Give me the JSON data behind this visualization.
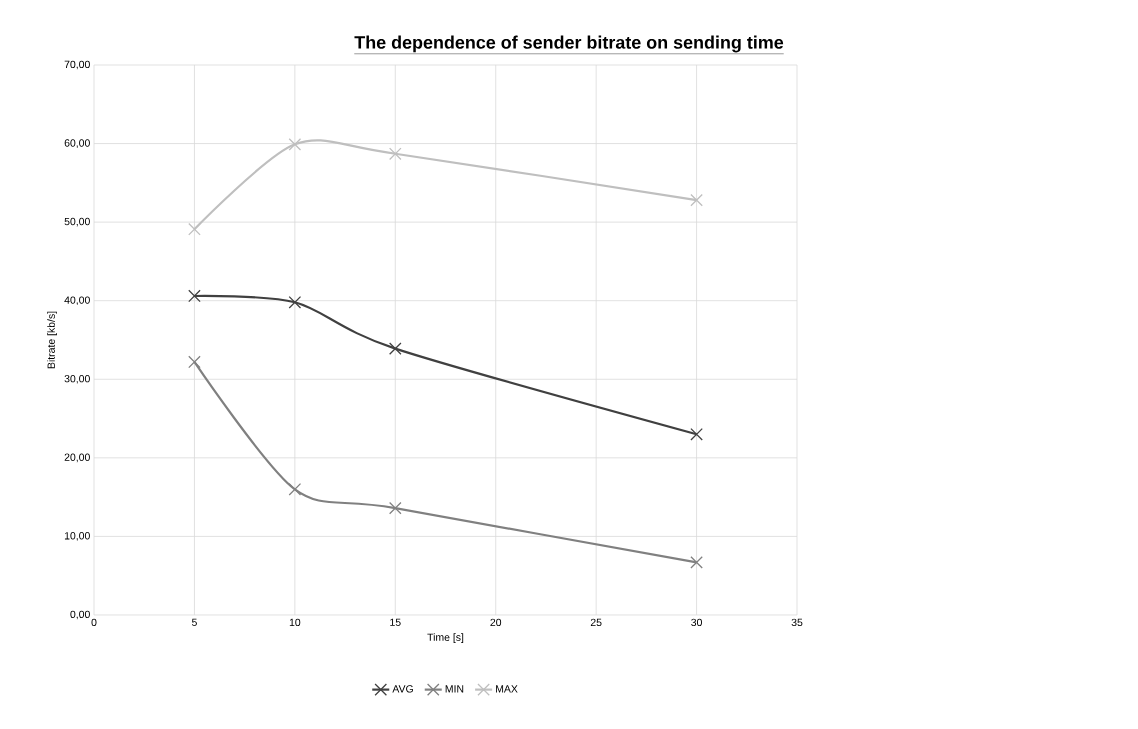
{
  "chart_data": {
    "type": "line",
    "title": "The dependence of sender bitrate on sending time",
    "xlabel": "Time [s]",
    "ylabel": "Bitrate [kb/s]",
    "x": [
      5,
      10,
      15,
      30
    ],
    "series": [
      {
        "name": "AVG",
        "color": "#404040",
        "values": [
          40.6,
          39.8,
          33.9,
          23.0
        ]
      },
      {
        "name": "MIN",
        "color": "#808080",
        "values": [
          32.2,
          16.0,
          13.6,
          6.7
        ]
      },
      {
        "name": "MAX",
        "color": "#bfbfbf",
        "values": [
          49.1,
          59.9,
          58.7,
          52.8
        ]
      }
    ],
    "xlim": [
      0,
      35
    ],
    "xticks": [
      0,
      5,
      10,
      15,
      20,
      25,
      30,
      35
    ],
    "ylim": [
      0,
      70
    ],
    "yticks": [
      {
        "value": 0,
        "label": "0,00"
      },
      {
        "value": 10,
        "label": "10,00"
      },
      {
        "value": 20,
        "label": "20,00"
      },
      {
        "value": 30,
        "label": "30,00"
      },
      {
        "value": 40,
        "label": "40,00"
      },
      {
        "value": 50,
        "label": "50,00"
      },
      {
        "value": 60,
        "label": "60,00"
      },
      {
        "value": 70,
        "label": "70,00"
      }
    ],
    "grid": true,
    "legend": "bottom",
    "marker": "cross",
    "line_style": "solid"
  }
}
